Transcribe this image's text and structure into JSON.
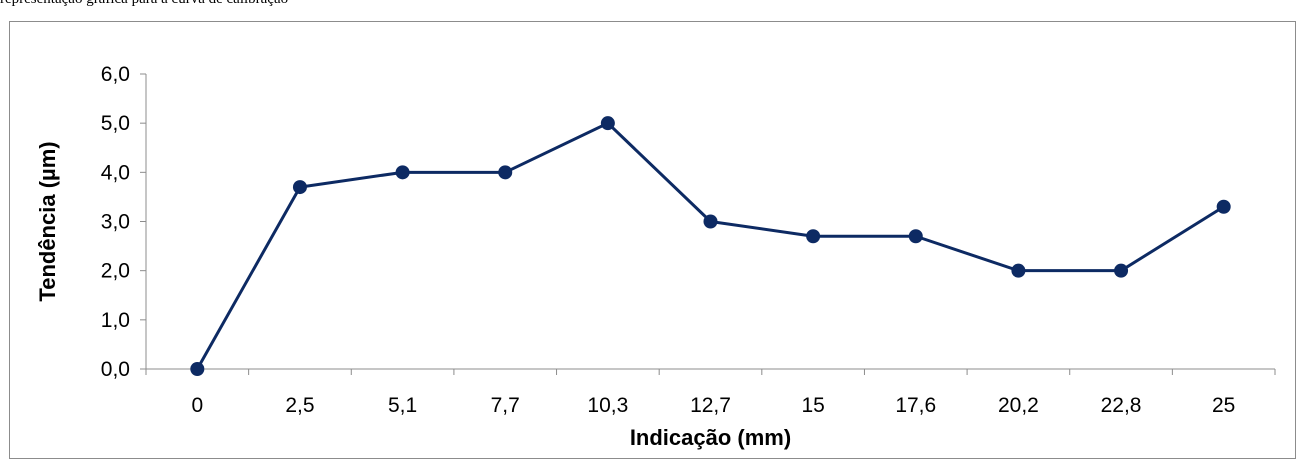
{
  "caption": "representação gráfica para a curva de calibração",
  "chart_data": {
    "type": "line",
    "categories": [
      "0",
      "2,5",
      "5,1",
      "7,7",
      "10,3",
      "12,7",
      "15",
      "17,6",
      "20,2",
      "22,8",
      "25"
    ],
    "series": [
      {
        "values": [
          0.0,
          3.7,
          4.0,
          4.0,
          5.0,
          3.0,
          2.7,
          2.7,
          2.0,
          2.0,
          3.3
        ]
      }
    ],
    "xlabel": "Indicação (mm)",
    "ylabel": "Tendência (µm)",
    "ylim": [
      0,
      6
    ],
    "yticks": [
      "0,0",
      "1,0",
      "2,0",
      "3,0",
      "4,0",
      "5,0",
      "6,0"
    ],
    "grid": false,
    "line_color": "#0d2a63"
  }
}
